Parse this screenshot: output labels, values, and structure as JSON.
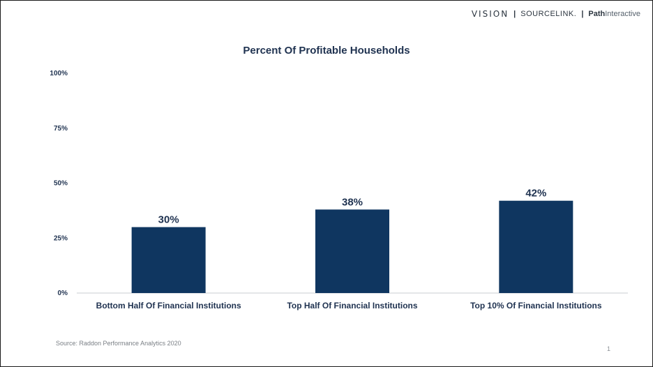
{
  "header": {
    "logo_vision": "VISION",
    "logo_separator_1": "|",
    "logo_sourcelink": "SOURCELINK.",
    "logo_separator_2": "|",
    "logo_path_bold": "Path",
    "logo_path_light": "Interactive"
  },
  "chart_data": {
    "type": "bar",
    "title": "Percent Of Profitable Households",
    "xlabel": "",
    "ylabel": "",
    "categories": [
      "Bottom Half Of Financial Institutions",
      "Top Half Of Financial Institutions",
      "Top 10% Of Financial Institutions"
    ],
    "values": [
      30,
      38,
      42
    ],
    "value_labels": [
      "30%",
      "38%",
      "42%"
    ],
    "ylim": [
      0,
      100
    ],
    "yticks": [
      0,
      25,
      50,
      75,
      100
    ],
    "ytick_labels": [
      "0%",
      "25%",
      "50%",
      "75%",
      "100%"
    ],
    "grid": false,
    "legend": "none",
    "bar_color": "#0f3660",
    "axis_color": "#c9ccd0",
    "text_color": "#1f3250"
  },
  "footer": {
    "source": "Source: Raddon Performance Analytics 2020",
    "page_number": "1"
  }
}
